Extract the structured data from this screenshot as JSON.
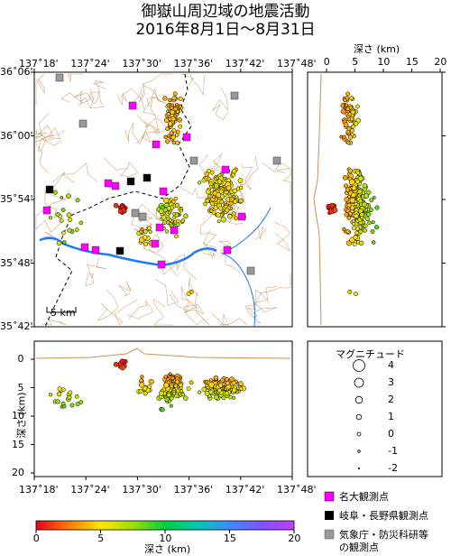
{
  "title_line1": "御嶽山周辺域の地震活動",
  "title_line2": "2016年8月1日〜8月31日",
  "map": {
    "lon_ticks": [
      "137˚18'",
      "137˚24'",
      "137˚30'",
      "137˚36'",
      "137˚42'",
      "137˚48'"
    ],
    "lat_ticks": [
      "36˚06'",
      "36˚00'",
      "35˚54'",
      "35˚48'",
      "35˚42'"
    ],
    "scale_label": "5 km"
  },
  "depth_axis_top": {
    "title": "深さ (km)",
    "ticks": [
      "0",
      "5",
      "10",
      "15",
      "20"
    ]
  },
  "cross_section": {
    "ylabel": "深さ (km)",
    "yticks": [
      "0",
      "5",
      "10",
      "15",
      "20"
    ],
    "xticks": [
      "137˚18'",
      "137˚24'",
      "137˚30'",
      "137˚36'",
      "137˚42'",
      "137˚48'"
    ]
  },
  "magnitude_legend": {
    "title": "マグニチュード",
    "items": [
      {
        "label": "4",
        "r": 6.5
      },
      {
        "label": "3",
        "r": 5
      },
      {
        "label": "2",
        "r": 3.8
      },
      {
        "label": "1",
        "r": 2.8
      },
      {
        "label": "0",
        "r": 2
      },
      {
        "label": "-1",
        "r": 1.3
      },
      {
        "label": "-2",
        "r": 0.7
      }
    ]
  },
  "station_legend": [
    {
      "label": "名大観測点",
      "color": "#ff00ff"
    },
    {
      "label": "岐阜・長野県観測点",
      "color": "#000000"
    },
    {
      "label": "気象庁・防災科研等",
      "color": "#999999"
    },
    {
      "label": "の観測点",
      "color": ""
    }
  ],
  "colorbar": {
    "label": "深さ (km)",
    "ticks": [
      "0",
      "5",
      "10",
      "15",
      "20"
    ],
    "stops": [
      "#e8001c",
      "#ff7a00",
      "#ffe600",
      "#9be000",
      "#00d03c",
      "#00c8b4",
      "#3c8cff",
      "#8050ff",
      "#c040ff"
    ]
  },
  "colors": {
    "topo": "#c8925a",
    "river": "#1e78ff",
    "border": "#000000"
  }
}
